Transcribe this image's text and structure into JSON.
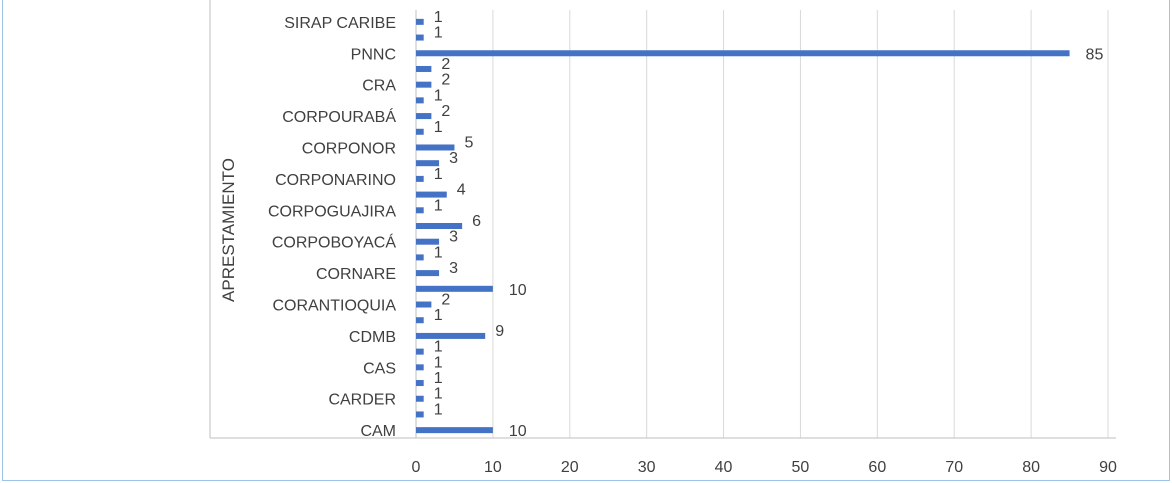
{
  "chart_data": {
    "type": "bar",
    "orientation": "horizontal",
    "group_label": "APRESTAMIENTO",
    "title": "",
    "xlabel": "",
    "ylabel": "",
    "xlim": [
      0,
      90
    ],
    "x_ticks": [
      "0",
      "10",
      "20",
      "30",
      "40",
      "50",
      "60",
      "70",
      "80",
      "90"
    ],
    "grid": true,
    "legend": "none",
    "bar_color": "#4472c4",
    "category_labels": [
      "SIRAP CARIBE",
      "PNNC",
      "CRA",
      "CORPOURABÁ",
      "CORPONOR",
      "CORPONARINO",
      "CORPOGUAJIRA",
      "CORPOBOYACÁ",
      "CORNARE",
      "CORANTIOQUIA",
      "CDMB",
      "CAS",
      "CARDER",
      "CAM"
    ],
    "bars": [
      {
        "value": 1,
        "category": "SIRAP CARIBE"
      },
      {
        "value": 1
      },
      {
        "value": 85,
        "category": "PNNC"
      },
      {
        "value": 2
      },
      {
        "value": 2,
        "category": "CRA"
      },
      {
        "value": 1
      },
      {
        "value": 2,
        "category": "CORPOURABÁ"
      },
      {
        "value": 1
      },
      {
        "value": 5,
        "category": "CORPONOR"
      },
      {
        "value": 3
      },
      {
        "value": 1,
        "category": "CORPONARINO"
      },
      {
        "value": 4
      },
      {
        "value": 1,
        "category": "CORPOGUAJIRA"
      },
      {
        "value": 6
      },
      {
        "value": 3,
        "category": "CORPOBOYACÁ"
      },
      {
        "value": 1
      },
      {
        "value": 3,
        "category": "CORNARE"
      },
      {
        "value": 10
      },
      {
        "value": 2,
        "category": "CORANTIOQUIA"
      },
      {
        "value": 1
      },
      {
        "value": 9,
        "category": "CDMB"
      },
      {
        "value": 1
      },
      {
        "value": 1,
        "category": "CAS"
      },
      {
        "value": 1
      },
      {
        "value": 1,
        "category": "CARDER"
      },
      {
        "value": 1
      },
      {
        "value": 10,
        "category": "CAM"
      }
    ]
  }
}
